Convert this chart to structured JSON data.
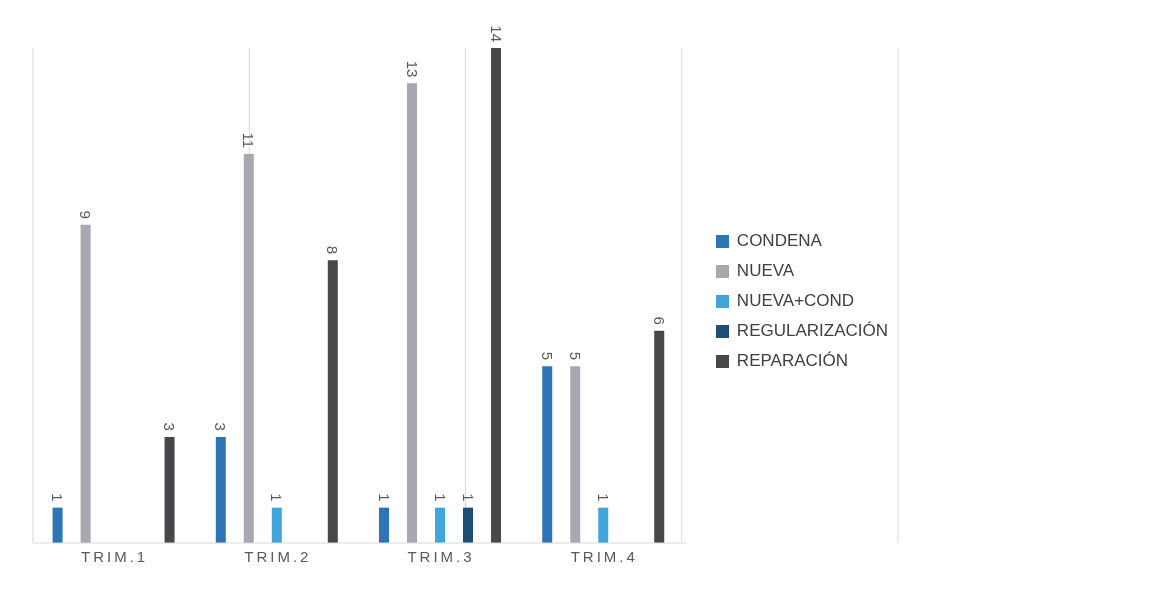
{
  "chart_data": {
    "type": "bar",
    "categories": [
      "TRIM.1",
      "TRIM.2",
      "TRIM.3",
      "TRIM.4"
    ],
    "series": [
      {
        "name": "CONDENA",
        "color": "#2e75b6",
        "values": [
          1,
          3,
          1,
          5
        ]
      },
      {
        "name": "NUEVA",
        "color": "#aaa7b0",
        "values": [
          9,
          11,
          13,
          5
        ]
      },
      {
        "name": "NUEVA+COND",
        "color": "#41a5dc",
        "values": [
          null,
          1,
          1,
          1
        ]
      },
      {
        "name": "REGULARIZACIÓN",
        "color": "#1f4e79",
        "values": [
          null,
          null,
          1,
          null
        ]
      },
      {
        "name": "REPARACIÓN",
        "color": "#47474c",
        "values": [
          3,
          8,
          14,
          6
        ]
      }
    ],
    "data_labels": true,
    "grid": "x",
    "legend": "right"
  }
}
